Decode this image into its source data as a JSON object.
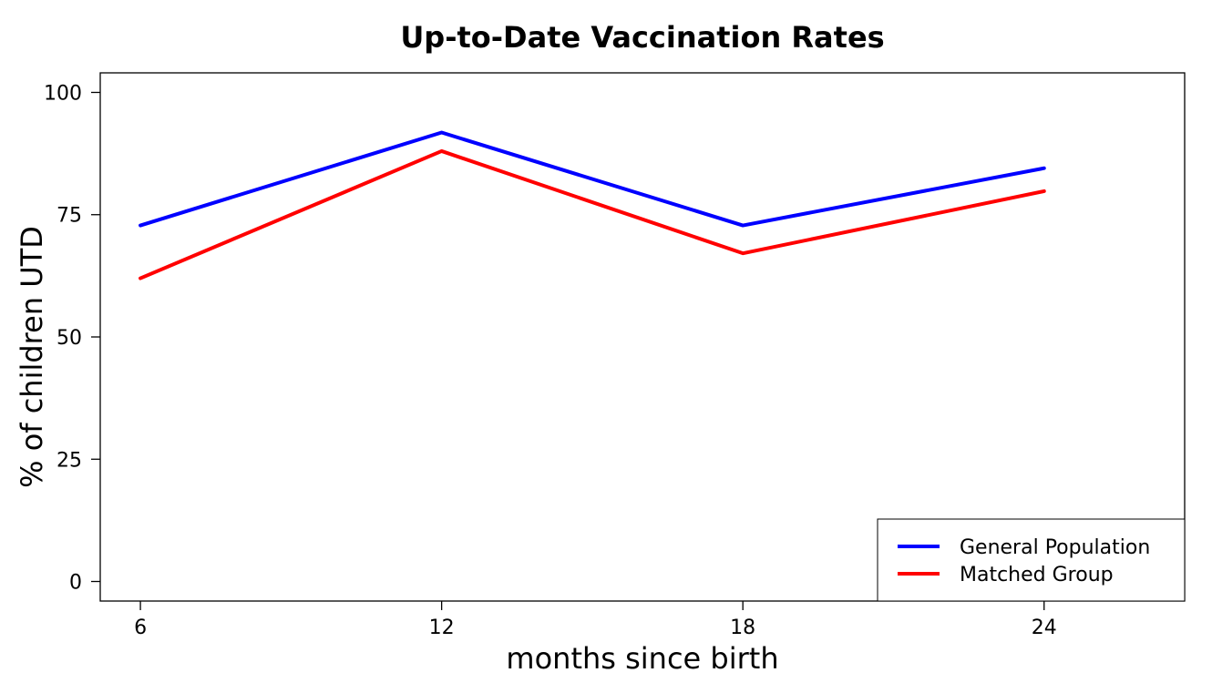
{
  "chart_data": {
    "type": "line",
    "title": "Up-to-Date Vaccination Rates",
    "xlabel": "months since birth",
    "ylabel": "% of children UTD",
    "x": [
      6,
      12,
      18,
      24
    ],
    "xticks": [
      "6",
      "12",
      "18",
      "24"
    ],
    "yticks": [
      "0",
      "25",
      "50",
      "75",
      "100"
    ],
    "ytick_values": [
      0,
      25,
      50,
      75,
      100
    ],
    "xlim": [
      5.2,
      26.8
    ],
    "ylim": [
      -4,
      104
    ],
    "grid": false,
    "legend_position": "bottom-right",
    "series": [
      {
        "name": "General Population",
        "color": "#0000ff",
        "values": [
          72.8,
          91.8,
          72.8,
          84.5
        ]
      },
      {
        "name": "Matched Group",
        "color": "#ff0000",
        "values": [
          62.0,
          88.0,
          67.1,
          79.8
        ]
      }
    ]
  }
}
